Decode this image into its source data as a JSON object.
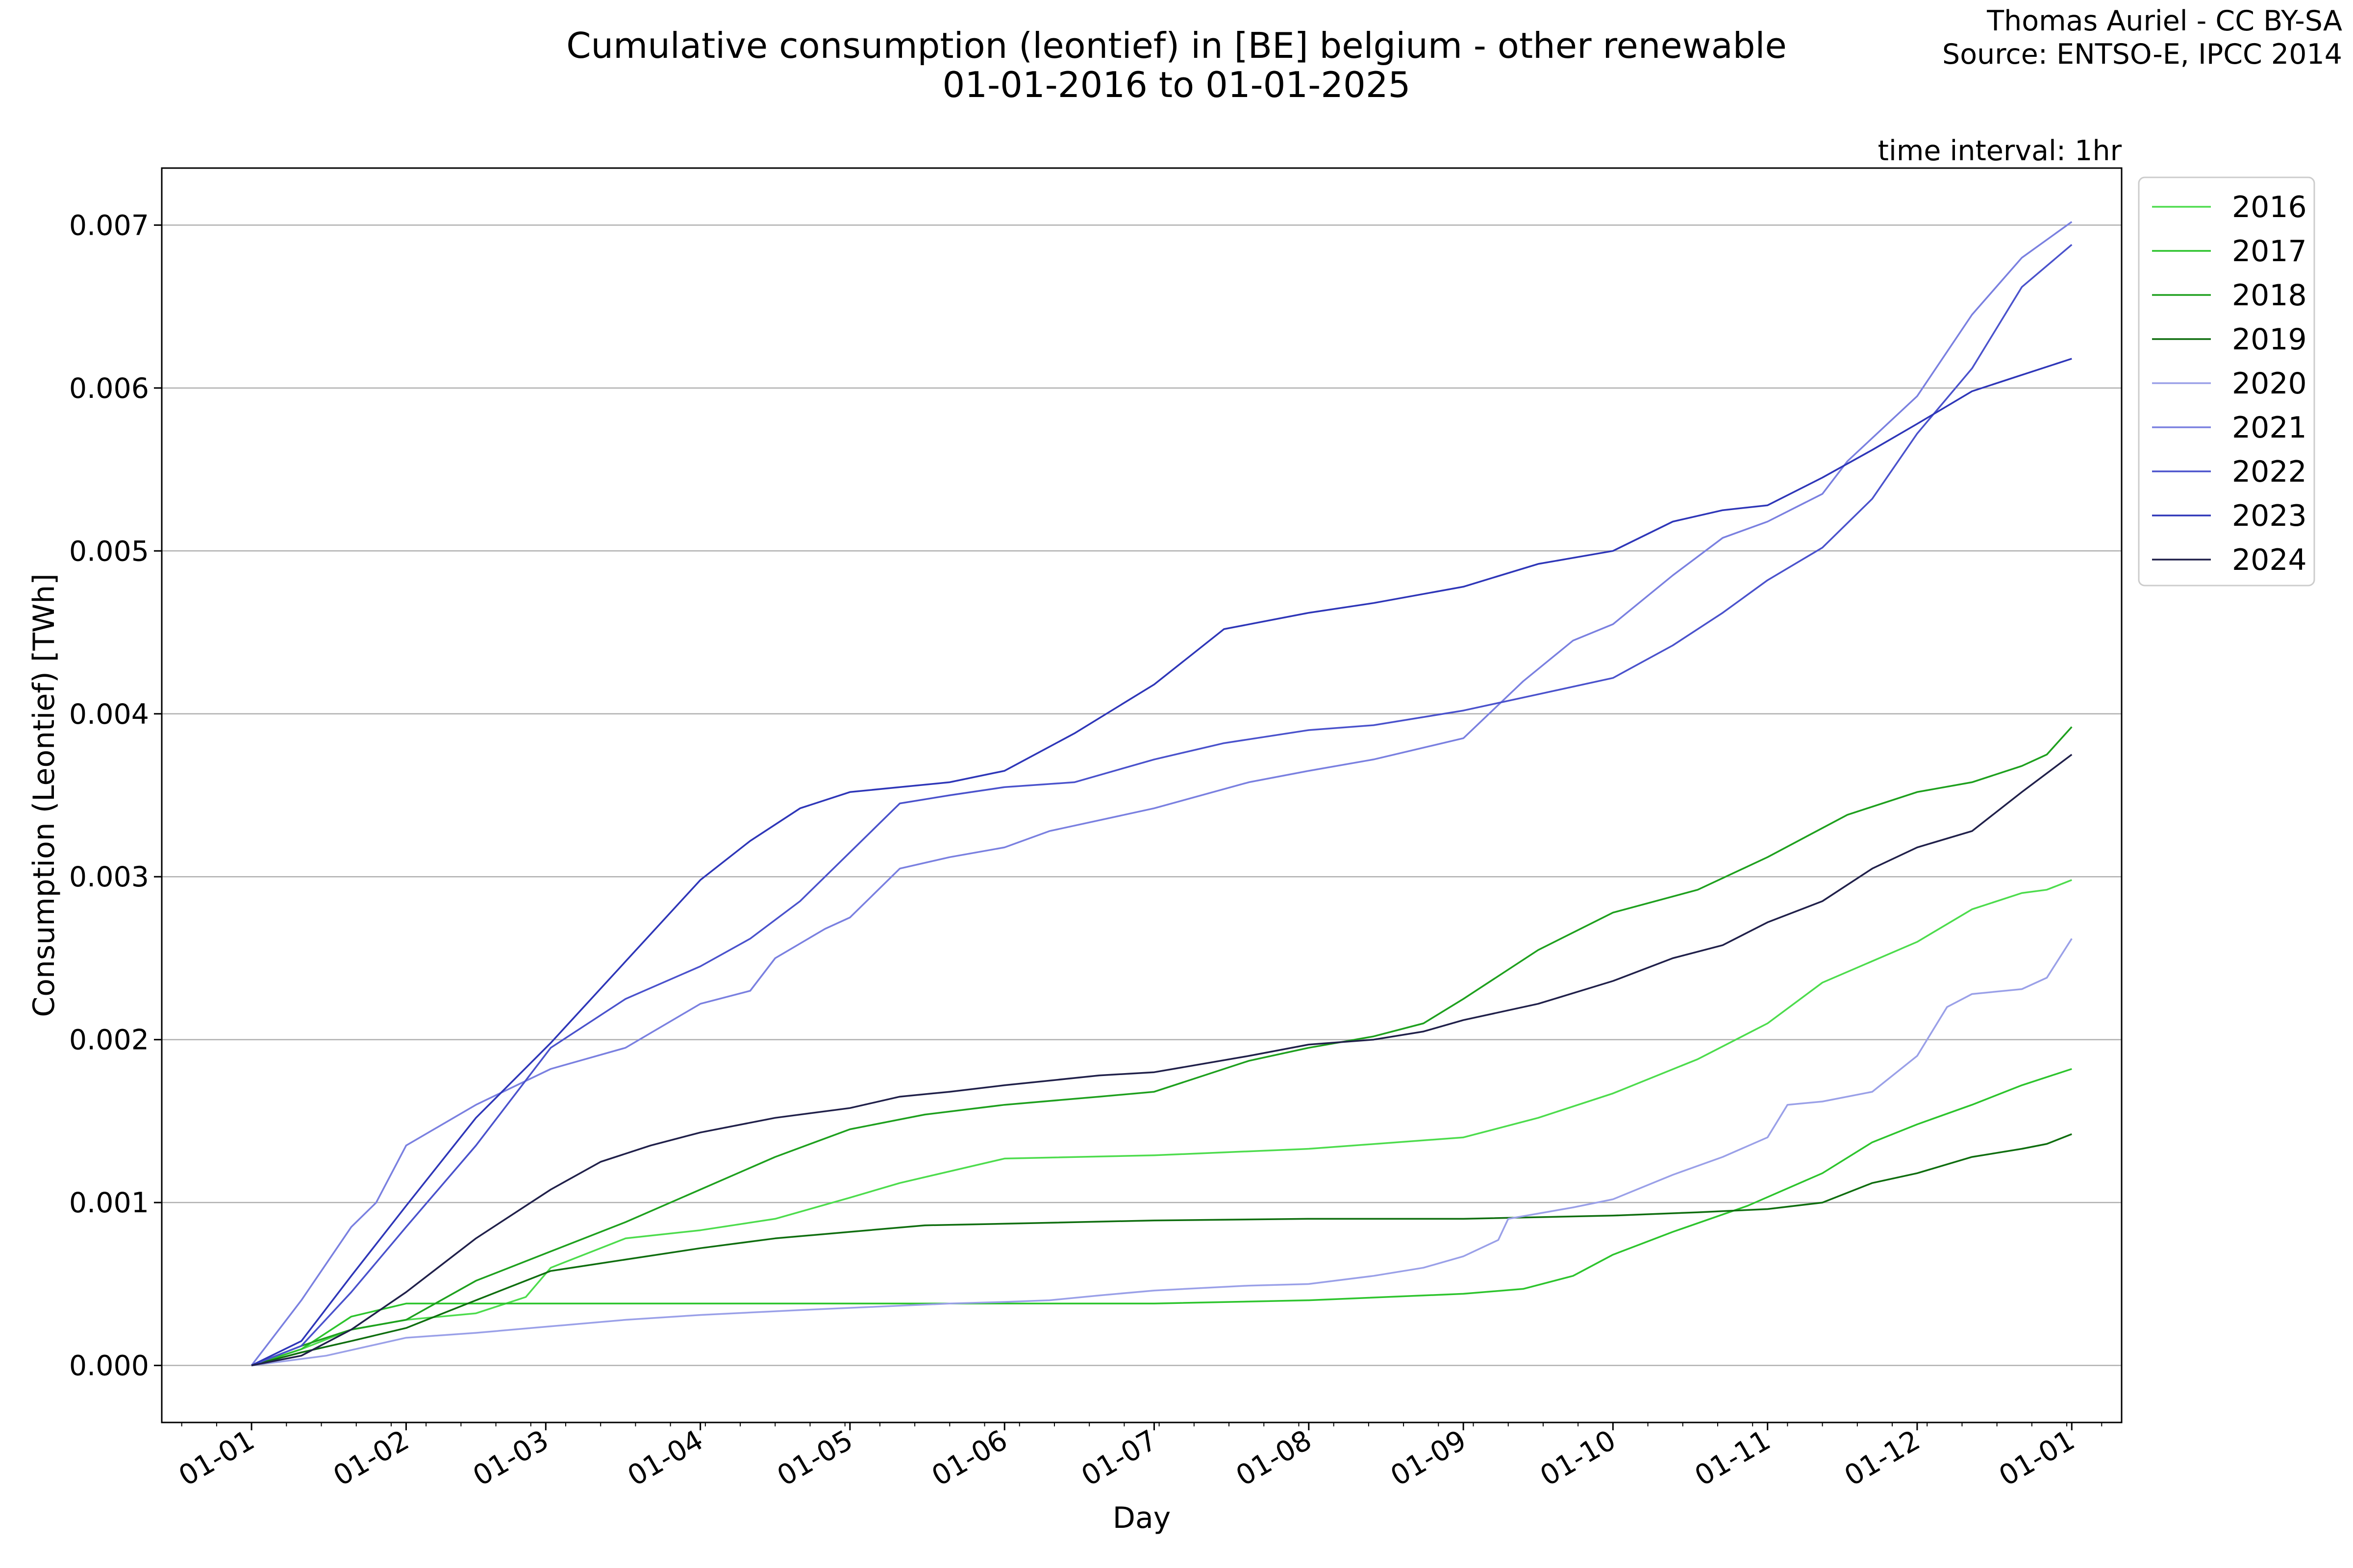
{
  "header": {
    "title_line1": "Cumulative consumption (leontief) in [BE] belgium - other renewable",
    "title_line2": "01-01-2016 to 01-01-2025",
    "credit_line1": "Thomas Auriel - CC BY-SA",
    "credit_line2": "Source: ENTSO-E, IPCC 2014",
    "time_interval": "time interval: 1hr"
  },
  "chart_data": {
    "type": "line",
    "xlabel": "Day",
    "ylabel": "Consumption (Leontief) [TWh]",
    "x_unit": "day of year",
    "xlim": [
      -18,
      375
    ],
    "ylim": [
      -0.00035,
      0.00735
    ],
    "x_tick_values": [
      0,
      31,
      59,
      90,
      120,
      151,
      181,
      212,
      243,
      273,
      304,
      334,
      365
    ],
    "x_tick_labels": [
      "01-01",
      "01-02",
      "01-03",
      "01-04",
      "01-05",
      "01-06",
      "01-07",
      "01-08",
      "01-09",
      "01-10",
      "01-11",
      "01-12",
      "01-01"
    ],
    "y_tick_values": [
      0.0,
      0.001,
      0.002,
      0.003,
      0.004,
      0.005,
      0.006,
      0.007
    ],
    "y_tick_labels": [
      "0.000",
      "0.001",
      "0.002",
      "0.003",
      "0.004",
      "0.005",
      "0.006",
      "0.007"
    ],
    "grid": "horizontal",
    "legend_position": "outside-right-top",
    "series": [
      {
        "name": "2016",
        "color": "#4ddc4d",
        "points": [
          [
            0,
            0
          ],
          [
            10,
            0.0001
          ],
          [
            20,
            0.00022
          ],
          [
            31,
            0.00028
          ],
          [
            45,
            0.00032
          ],
          [
            55,
            0.00042
          ],
          [
            60,
            0.0006
          ],
          [
            75,
            0.00078
          ],
          [
            90,
            0.00083
          ],
          [
            105,
            0.0009
          ],
          [
            120,
            0.00103
          ],
          [
            130,
            0.00112
          ],
          [
            151,
            0.00127
          ],
          [
            181,
            0.00129
          ],
          [
            212,
            0.00133
          ],
          [
            243,
            0.0014
          ],
          [
            258,
            0.00152
          ],
          [
            273,
            0.00167
          ],
          [
            290,
            0.00188
          ],
          [
            304,
            0.0021
          ],
          [
            315,
            0.00235
          ],
          [
            334,
            0.0026
          ],
          [
            345,
            0.0028
          ],
          [
            355,
            0.0029
          ],
          [
            360,
            0.00292
          ],
          [
            365,
            0.00298
          ]
        ]
      },
      {
        "name": "2017",
        "color": "#2dc42d",
        "points": [
          [
            0,
            0
          ],
          [
            10,
            0.0001
          ],
          [
            20,
            0.0003
          ],
          [
            31,
            0.00038
          ],
          [
            60,
            0.00038
          ],
          [
            90,
            0.00038
          ],
          [
            120,
            0.00038
          ],
          [
            151,
            0.00038
          ],
          [
            181,
            0.00038
          ],
          [
            212,
            0.0004
          ],
          [
            243,
            0.00044
          ],
          [
            255,
            0.00047
          ],
          [
            265,
            0.00055
          ],
          [
            273,
            0.00068
          ],
          [
            285,
            0.00082
          ],
          [
            300,
            0.00098
          ],
          [
            315,
            0.00118
          ],
          [
            325,
            0.00137
          ],
          [
            334,
            0.00148
          ],
          [
            345,
            0.0016
          ],
          [
            355,
            0.00172
          ],
          [
            365,
            0.00182
          ]
        ]
      },
      {
        "name": "2018",
        "color": "#1ea01e",
        "points": [
          [
            0,
            0
          ],
          [
            10,
            0.00012
          ],
          [
            20,
            0.00022
          ],
          [
            31,
            0.00028
          ],
          [
            45,
            0.00052
          ],
          [
            60,
            0.0007
          ],
          [
            75,
            0.00088
          ],
          [
            90,
            0.00108
          ],
          [
            105,
            0.00128
          ],
          [
            120,
            0.00145
          ],
          [
            135,
            0.00154
          ],
          [
            151,
            0.0016
          ],
          [
            170,
            0.00165
          ],
          [
            181,
            0.00168
          ],
          [
            200,
            0.00187
          ],
          [
            212,
            0.00195
          ],
          [
            225,
            0.00202
          ],
          [
            235,
            0.0021
          ],
          [
            243,
            0.00225
          ],
          [
            258,
            0.00255
          ],
          [
            273,
            0.00278
          ],
          [
            290,
            0.00292
          ],
          [
            304,
            0.00312
          ],
          [
            320,
            0.00338
          ],
          [
            334,
            0.00352
          ],
          [
            345,
            0.00358
          ],
          [
            355,
            0.00368
          ],
          [
            360,
            0.00375
          ],
          [
            365,
            0.00392
          ]
        ]
      },
      {
        "name": "2019",
        "color": "#0f6e0f",
        "points": [
          [
            0,
            0
          ],
          [
            10,
            8e-05
          ],
          [
            20,
            0.00015
          ],
          [
            31,
            0.00023
          ],
          [
            45,
            0.0004
          ],
          [
            60,
            0.00058
          ],
          [
            75,
            0.00065
          ],
          [
            90,
            0.00072
          ],
          [
            105,
            0.00078
          ],
          [
            120,
            0.00082
          ],
          [
            135,
            0.00086
          ],
          [
            151,
            0.00087
          ],
          [
            181,
            0.00089
          ],
          [
            212,
            0.0009
          ],
          [
            243,
            0.0009
          ],
          [
            273,
            0.00092
          ],
          [
            290,
            0.00094
          ],
          [
            304,
            0.00096
          ],
          [
            315,
            0.001
          ],
          [
            325,
            0.00112
          ],
          [
            334,
            0.00118
          ],
          [
            345,
            0.00128
          ],
          [
            355,
            0.00133
          ],
          [
            360,
            0.00136
          ],
          [
            365,
            0.00142
          ]
        ]
      },
      {
        "name": "2020",
        "color": "#9aa0e8",
        "points": [
          [
            0,
            0
          ],
          [
            15,
            6e-05
          ],
          [
            31,
            0.00017
          ],
          [
            45,
            0.0002
          ],
          [
            60,
            0.00024
          ],
          [
            75,
            0.00028
          ],
          [
            90,
            0.00031
          ],
          [
            110,
            0.00034
          ],
          [
            125,
            0.00036
          ],
          [
            140,
            0.00038
          ],
          [
            151,
            0.00039
          ],
          [
            160,
            0.0004
          ],
          [
            170,
            0.00043
          ],
          [
            181,
            0.00046
          ],
          [
            200,
            0.00049
          ],
          [
            212,
            0.0005
          ],
          [
            225,
            0.00055
          ],
          [
            235,
            0.0006
          ],
          [
            243,
            0.00067
          ],
          [
            250,
            0.00077
          ],
          [
            252,
            0.0009
          ],
          [
            265,
            0.00097
          ],
          [
            273,
            0.00102
          ],
          [
            285,
            0.00117
          ],
          [
            295,
            0.00128
          ],
          [
            304,
            0.0014
          ],
          [
            308,
            0.0016
          ],
          [
            315,
            0.00162
          ],
          [
            325,
            0.00168
          ],
          [
            334,
            0.0019
          ],
          [
            340,
            0.0022
          ],
          [
            345,
            0.00228
          ],
          [
            355,
            0.00231
          ],
          [
            360,
            0.00238
          ],
          [
            365,
            0.00262
          ]
        ]
      },
      {
        "name": "2021",
        "color": "#7a80e0",
        "points": [
          [
            0,
            0
          ],
          [
            10,
            0.0004
          ],
          [
            20,
            0.00085
          ],
          [
            25,
            0.001
          ],
          [
            31,
            0.00135
          ],
          [
            45,
            0.0016
          ],
          [
            60,
            0.00182
          ],
          [
            75,
            0.00195
          ],
          [
            90,
            0.00222
          ],
          [
            100,
            0.0023
          ],
          [
            105,
            0.0025
          ],
          [
            115,
            0.00268
          ],
          [
            120,
            0.00275
          ],
          [
            130,
            0.00305
          ],
          [
            140,
            0.00312
          ],
          [
            151,
            0.00318
          ],
          [
            160,
            0.00328
          ],
          [
            181,
            0.00342
          ],
          [
            200,
            0.00358
          ],
          [
            212,
            0.00365
          ],
          [
            225,
            0.00372
          ],
          [
            243,
            0.00385
          ],
          [
            255,
            0.0042
          ],
          [
            265,
            0.00445
          ],
          [
            273,
            0.00455
          ],
          [
            285,
            0.00485
          ],
          [
            295,
            0.00508
          ],
          [
            304,
            0.00518
          ],
          [
            315,
            0.00535
          ],
          [
            320,
            0.00555
          ],
          [
            334,
            0.00595
          ],
          [
            345,
            0.00645
          ],
          [
            355,
            0.0068
          ],
          [
            365,
            0.00702
          ]
        ]
      },
      {
        "name": "2022",
        "color": "#4a52cc",
        "points": [
          [
            0,
            0
          ],
          [
            10,
            0.00012
          ],
          [
            20,
            0.00045
          ],
          [
            31,
            0.00085
          ],
          [
            45,
            0.00135
          ],
          [
            60,
            0.00195
          ],
          [
            75,
            0.00225
          ],
          [
            90,
            0.00245
          ],
          [
            100,
            0.00262
          ],
          [
            110,
            0.00285
          ],
          [
            120,
            0.00315
          ],
          [
            130,
            0.00345
          ],
          [
            140,
            0.0035
          ],
          [
            151,
            0.00355
          ],
          [
            165,
            0.00358
          ],
          [
            181,
            0.00372
          ],
          [
            195,
            0.00382
          ],
          [
            212,
            0.0039
          ],
          [
            225,
            0.00393
          ],
          [
            243,
            0.00402
          ],
          [
            258,
            0.00412
          ],
          [
            273,
            0.00422
          ],
          [
            285,
            0.00442
          ],
          [
            295,
            0.00462
          ],
          [
            304,
            0.00482
          ],
          [
            315,
            0.00502
          ],
          [
            325,
            0.00532
          ],
          [
            334,
            0.00572
          ],
          [
            345,
            0.00612
          ],
          [
            355,
            0.00662
          ],
          [
            365,
            0.00688
          ]
        ]
      },
      {
        "name": "2023",
        "color": "#2e36b8",
        "points": [
          [
            0,
            0
          ],
          [
            10,
            0.00015
          ],
          [
            20,
            0.00055
          ],
          [
            31,
            0.00098
          ],
          [
            45,
            0.00152
          ],
          [
            60,
            0.00198
          ],
          [
            75,
            0.00248
          ],
          [
            90,
            0.00298
          ],
          [
            100,
            0.00322
          ],
          [
            110,
            0.00342
          ],
          [
            120,
            0.00352
          ],
          [
            130,
            0.00355
          ],
          [
            140,
            0.00358
          ],
          [
            151,
            0.00365
          ],
          [
            165,
            0.00388
          ],
          [
            181,
            0.00418
          ],
          [
            195,
            0.00452
          ],
          [
            212,
            0.00462
          ],
          [
            225,
            0.00468
          ],
          [
            243,
            0.00478
          ],
          [
            258,
            0.00492
          ],
          [
            273,
            0.005
          ],
          [
            285,
            0.00518
          ],
          [
            295,
            0.00525
          ],
          [
            304,
            0.00528
          ],
          [
            315,
            0.00545
          ],
          [
            325,
            0.00562
          ],
          [
            334,
            0.00578
          ],
          [
            345,
            0.00598
          ],
          [
            355,
            0.00608
          ],
          [
            365,
            0.00618
          ]
        ]
      },
      {
        "name": "2024",
        "color": "#20204a",
        "points": [
          [
            0,
            0
          ],
          [
            10,
            6e-05
          ],
          [
            20,
            0.00022
          ],
          [
            31,
            0.00045
          ],
          [
            45,
            0.00078
          ],
          [
            60,
            0.00108
          ],
          [
            70,
            0.00125
          ],
          [
            80,
            0.00135
          ],
          [
            90,
            0.00143
          ],
          [
            105,
            0.00152
          ],
          [
            120,
            0.00158
          ],
          [
            130,
            0.00165
          ],
          [
            140,
            0.00168
          ],
          [
            151,
            0.00172
          ],
          [
            170,
            0.00178
          ],
          [
            181,
            0.0018
          ],
          [
            200,
            0.0019
          ],
          [
            212,
            0.00197
          ],
          [
            225,
            0.002
          ],
          [
            235,
            0.00205
          ],
          [
            243,
            0.00212
          ],
          [
            258,
            0.00222
          ],
          [
            273,
            0.00236
          ],
          [
            285,
            0.0025
          ],
          [
            295,
            0.00258
          ],
          [
            304,
            0.00272
          ],
          [
            315,
            0.00285
          ],
          [
            325,
            0.00305
          ],
          [
            334,
            0.00318
          ],
          [
            345,
            0.00328
          ],
          [
            355,
            0.00352
          ],
          [
            365,
            0.00375
          ]
        ]
      }
    ]
  }
}
